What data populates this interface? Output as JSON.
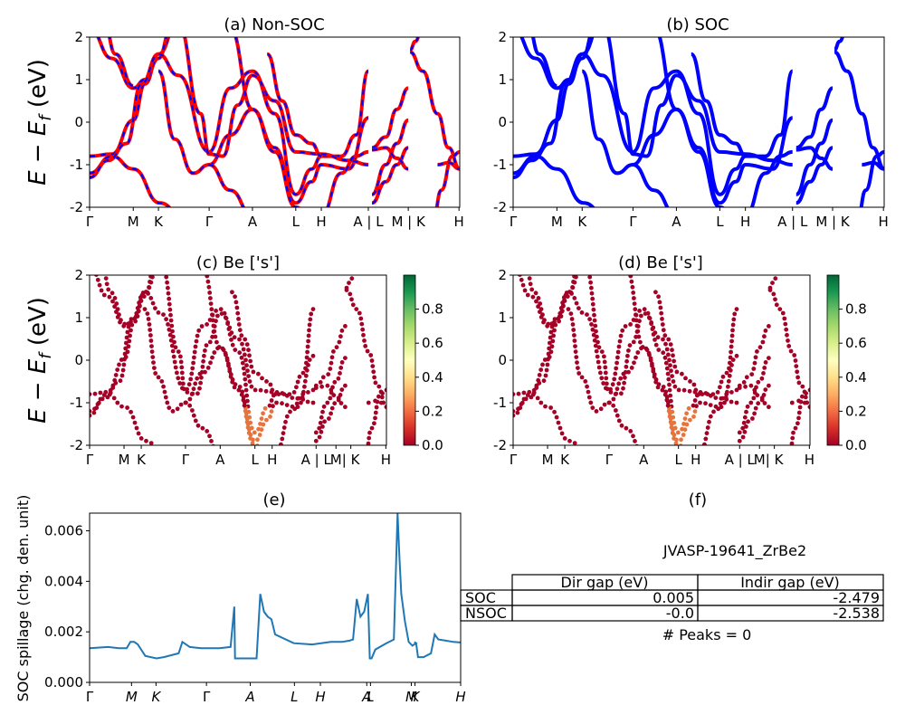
{
  "figure_id": "JVASP-19641_ZrBe2",
  "ylabel_band": "E − E",
  "ylabel_band_sub": "f",
  "ylabel_band_unit": " (eV)",
  "path_labels_top": [
    "Γ",
    "M",
    "K",
    "Γ",
    "A",
    "L",
    "H",
    "A | L",
    "M | K",
    "H"
  ],
  "path_labels_mid": [
    "Γ",
    "M",
    "K",
    "Γ",
    "A",
    "L",
    "H",
    "A | L",
    "M",
    "| K",
    "H"
  ],
  "path_labels_bottom": [
    "Γ",
    "M",
    "K",
    "Γ",
    "A",
    "L",
    "H",
    "A",
    "L",
    "M",
    "K",
    "H"
  ],
  "colors": {
    "soc_band": "#0000ff",
    "nonsoc_band": "#ff0000",
    "projection_low": "#a50026",
    "projection_mid": "#ffffbf",
    "projection_high": "#006837",
    "spillage_line": "#1f77b4"
  },
  "chart_data": [
    {
      "id": "a",
      "type": "line",
      "title": "(a) Non-SOC",
      "ylim": [
        -2,
        2
      ],
      "yticks": [
        -2,
        -1,
        0,
        1,
        2
      ],
      "style": "red solid with blue dashed overlay",
      "series": []
    },
    {
      "id": "b",
      "type": "line",
      "title": "(b) SOC",
      "ylim": [
        -2,
        2
      ],
      "yticks": [
        -2,
        -1,
        0,
        1,
        2
      ],
      "style": "blue solid",
      "series": []
    },
    {
      "id": "c",
      "type": "scatter",
      "title": "(c)  Be ['s']",
      "ylim": [
        -2,
        2
      ],
      "yticks": [
        -2,
        -1,
        0,
        1,
        2
      ],
      "colorbar": {
        "range": [
          0.0,
          1.0
        ],
        "ticks": [
          "0.0",
          "0.2",
          "0.4",
          "0.6",
          "0.8"
        ],
        "colormap": "RdYlGn"
      }
    },
    {
      "id": "d",
      "type": "scatter",
      "title": "(d) Be ['s']",
      "ylim": [
        -2,
        2
      ],
      "yticks": [
        -2,
        -1,
        0,
        1,
        2
      ],
      "colorbar": {
        "range": [
          0.0,
          1.0
        ],
        "ticks": [
          "0.0",
          "0.2",
          "0.4",
          "0.6",
          "0.8"
        ],
        "colormap": "RdYlGn"
      }
    },
    {
      "id": "e",
      "type": "line",
      "title": "(e)",
      "ylabel": "SOC spillage (chg. den. unit)",
      "ylim": [
        0,
        0.0067
      ],
      "yticks": [
        "0.000",
        "0.002",
        "0.004",
        "0.006"
      ],
      "series": [
        {
          "x": [
            0.0,
            0.05,
            0.08,
            0.1,
            0.11,
            0.12,
            0.13,
            0.15,
            0.18,
            0.2,
            0.24,
            0.25,
            0.27,
            0.3,
            0.35,
            0.38,
            0.39,
            0.392,
            0.4,
            0.42,
            0.45,
            0.46,
            0.47,
            0.48,
            0.49,
            0.5,
            0.55,
            0.6,
            0.65,
            0.68,
            0.7,
            0.71,
            0.72,
            0.73,
            0.74,
            0.75,
            0.755,
            0.76,
            0.77,
            0.8,
            0.82,
            0.83,
            0.835,
            0.84,
            0.85,
            0.86,
            0.87,
            0.88,
            0.875,
            0.88,
            0.885,
            0.9,
            0.92,
            0.93,
            0.94,
            0.96,
            0.98,
            1.0
          ],
          "y": [
            0.00135,
            0.0014,
            0.00135,
            0.00135,
            0.0016,
            0.0016,
            0.0015,
            0.00105,
            0.00095,
            0.001,
            0.00115,
            0.0016,
            0.0014,
            0.00135,
            0.00135,
            0.0014,
            0.003,
            0.00095,
            0.00095,
            0.00095,
            0.00095,
            0.0035,
            0.0028,
            0.0026,
            0.0025,
            0.0019,
            0.00155,
            0.0015,
            0.0016,
            0.0016,
            0.00165,
            0.0017,
            0.0033,
            0.0026,
            0.0028,
            0.0035,
            0.00095,
            0.00095,
            0.0013,
            0.00155,
            0.0017,
            0.0067,
            0.005,
            0.0035,
            0.0024,
            0.0016,
            0.00145,
            0.00155,
            0.0016,
            0.00155,
            0.001,
            0.001,
            0.00115,
            0.0019,
            0.0017,
            0.00165,
            0.0016,
            0.00158
          ]
        }
      ]
    }
  ],
  "panel_f": {
    "title": "(f)",
    "material": "JVASP-19641_ZrBe2",
    "columns": [
      "Dir gap (eV)",
      "Indir gap (eV)"
    ],
    "rows": [
      {
        "label": "SOC",
        "dir": "0.005",
        "indir": "-2.479"
      },
      {
        "label": "NSOC",
        "dir": "-0.0",
        "indir": "-2.538"
      }
    ],
    "peaks": "# Peaks = 0"
  }
}
